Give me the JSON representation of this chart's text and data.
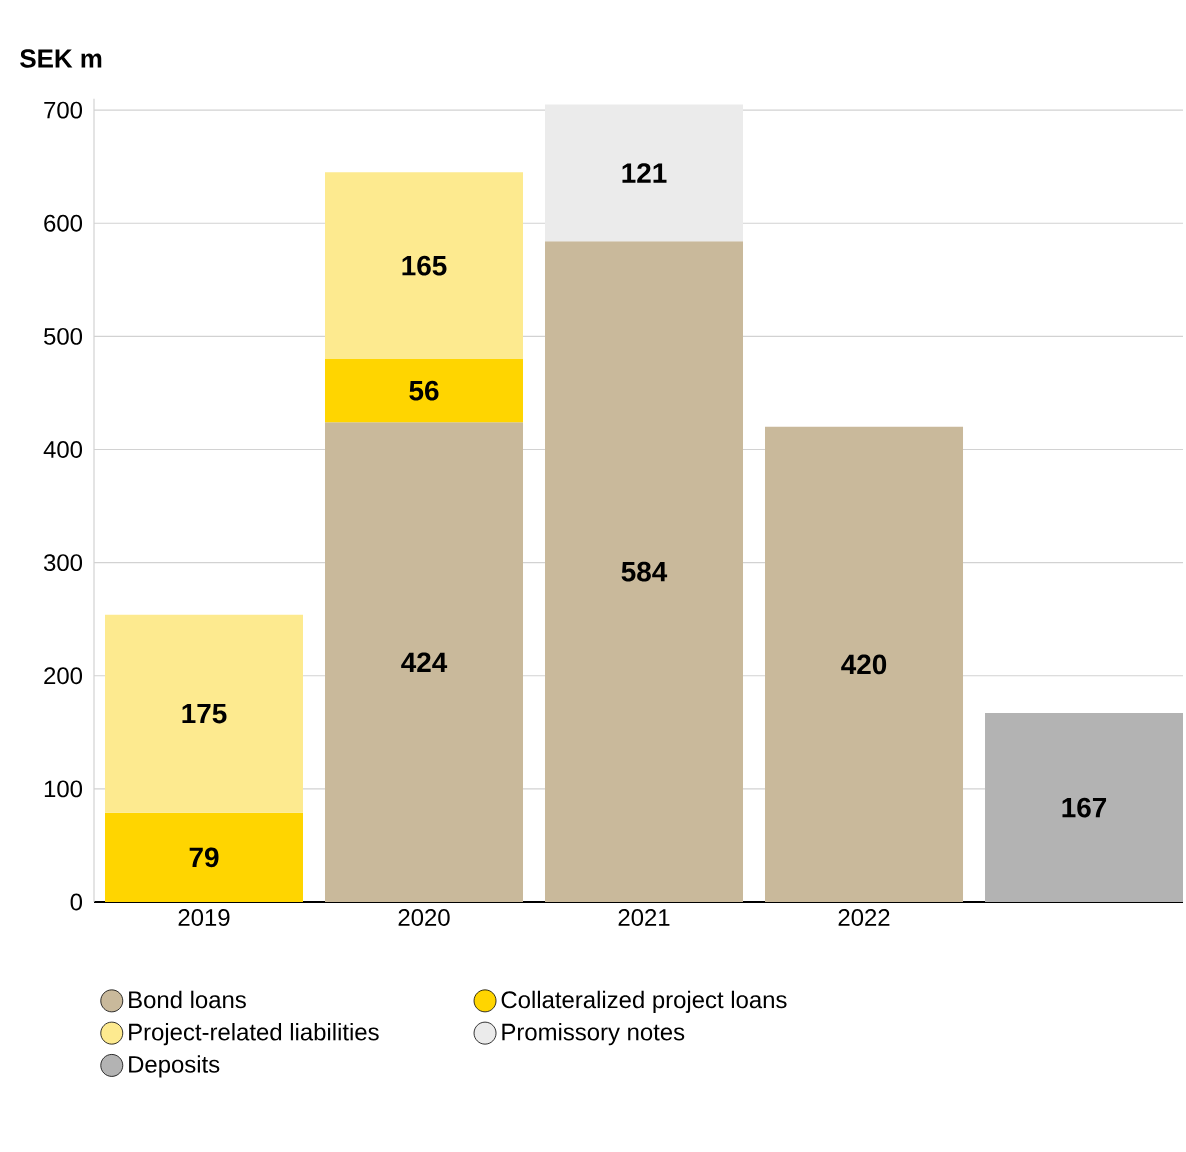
{
  "chart_data": {
    "type": "bar",
    "stacked": true,
    "ylabel": "SEK m",
    "categories": [
      "2019",
      "2020",
      "2021",
      "2022",
      null
    ],
    "series": [
      {
        "name": "Bond loans",
        "color": "#c9b99b",
        "values": [
          null,
          424,
          584,
          420,
          null
        ]
      },
      {
        "name": "Collateralized project loans",
        "color": "#ffd500",
        "values": [
          79,
          56,
          null,
          null,
          null
        ]
      },
      {
        "name": "Project-related liabilities",
        "color": "#fdea8f",
        "values": [
          175,
          165,
          null,
          null,
          null
        ]
      },
      {
        "name": "Promissory notes",
        "color": "#ebebeb",
        "values": [
          null,
          null,
          121,
          null,
          null
        ]
      },
      {
        "name": "Deposits",
        "color": "#b3b3b3",
        "values": [
          null,
          null,
          null,
          null,
          167
        ]
      }
    ],
    "ylim": [
      0,
      710
    ],
    "yticks": [
      0,
      100,
      200,
      300,
      400,
      500,
      600,
      700
    ],
    "grid": "y",
    "legend": "bottom",
    "data_labels": true
  }
}
